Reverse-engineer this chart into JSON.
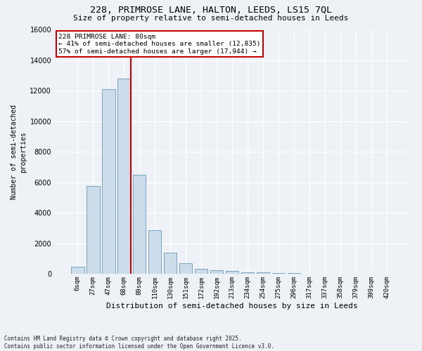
{
  "title_line1": "228, PRIMROSE LANE, HALTON, LEEDS, LS15 7QL",
  "title_line2": "Size of property relative to semi-detached houses in Leeds",
  "xlabel": "Distribution of semi-detached houses by size in Leeds",
  "ylabel": "Number of semi-detached\nproperties",
  "footnote": "Contains HM Land Registry data © Crown copyright and database right 2025.\nContains public sector information licensed under the Open Government Licence v3.0.",
  "annotation_title": "228 PRIMROSE LANE: 80sqm",
  "annotation_line1": "← 41% of semi-detached houses are smaller (12,835)",
  "annotation_line2": "57% of semi-detached houses are larger (17,944) →",
  "bar_color": "#cddceb",
  "bar_edge_color": "#6699bb",
  "vline_color": "#cc0000",
  "annotation_box_color": "#cc0000",
  "background_color": "#eef2f7",
  "grid_color": "#ffffff",
  "categories": [
    "6sqm",
    "27sqm",
    "47sqm",
    "68sqm",
    "89sqm",
    "110sqm",
    "130sqm",
    "151sqm",
    "172sqm",
    "192sqm",
    "213sqm",
    "234sqm",
    "254sqm",
    "275sqm",
    "296sqm",
    "317sqm",
    "337sqm",
    "358sqm",
    "379sqm",
    "399sqm",
    "420sqm"
  ],
  "values": [
    450,
    5750,
    12100,
    12800,
    6500,
    2850,
    1400,
    680,
    310,
    230,
    190,
    95,
    75,
    45,
    25,
    12,
    6,
    4,
    2,
    1,
    1
  ],
  "ylim": [
    0,
    16000
  ],
  "yticks": [
    0,
    2000,
    4000,
    6000,
    8000,
    10000,
    12000,
    14000,
    16000
  ],
  "vline_idx": 3,
  "title_fontsize": 9.5,
  "subtitle_fontsize": 8,
  "tick_fontsize": 6.5,
  "ylabel_fontsize": 7,
  "xlabel_fontsize": 8
}
